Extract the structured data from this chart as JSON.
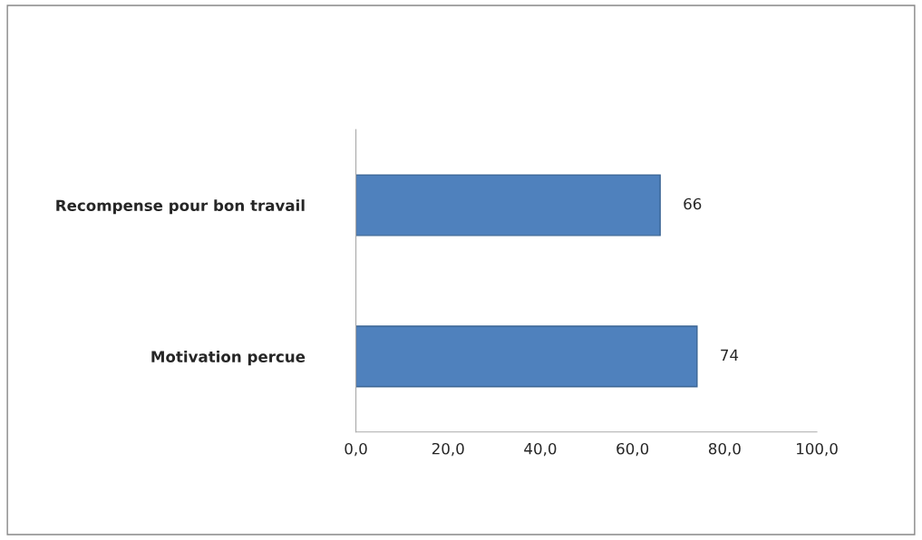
{
  "chart_data": {
    "type": "bar",
    "orientation": "horizontal",
    "categories": [
      "Recompense pour bon travail",
      "Motivation percue"
    ],
    "values": [
      66,
      74
    ],
    "color": "#4f81bd",
    "xlim": [
      0,
      100
    ],
    "xticks": [
      {
        "value": 0,
        "label": "0,0"
      },
      {
        "value": 20,
        "label": "20,0"
      },
      {
        "value": 40,
        "label": "40,0"
      },
      {
        "value": 60,
        "label": "60,0"
      },
      {
        "value": 80,
        "label": "80,0"
      },
      {
        "value": 100,
        "label": "100,0"
      }
    ],
    "data_labels": true,
    "grid": false,
    "legend": false
  }
}
